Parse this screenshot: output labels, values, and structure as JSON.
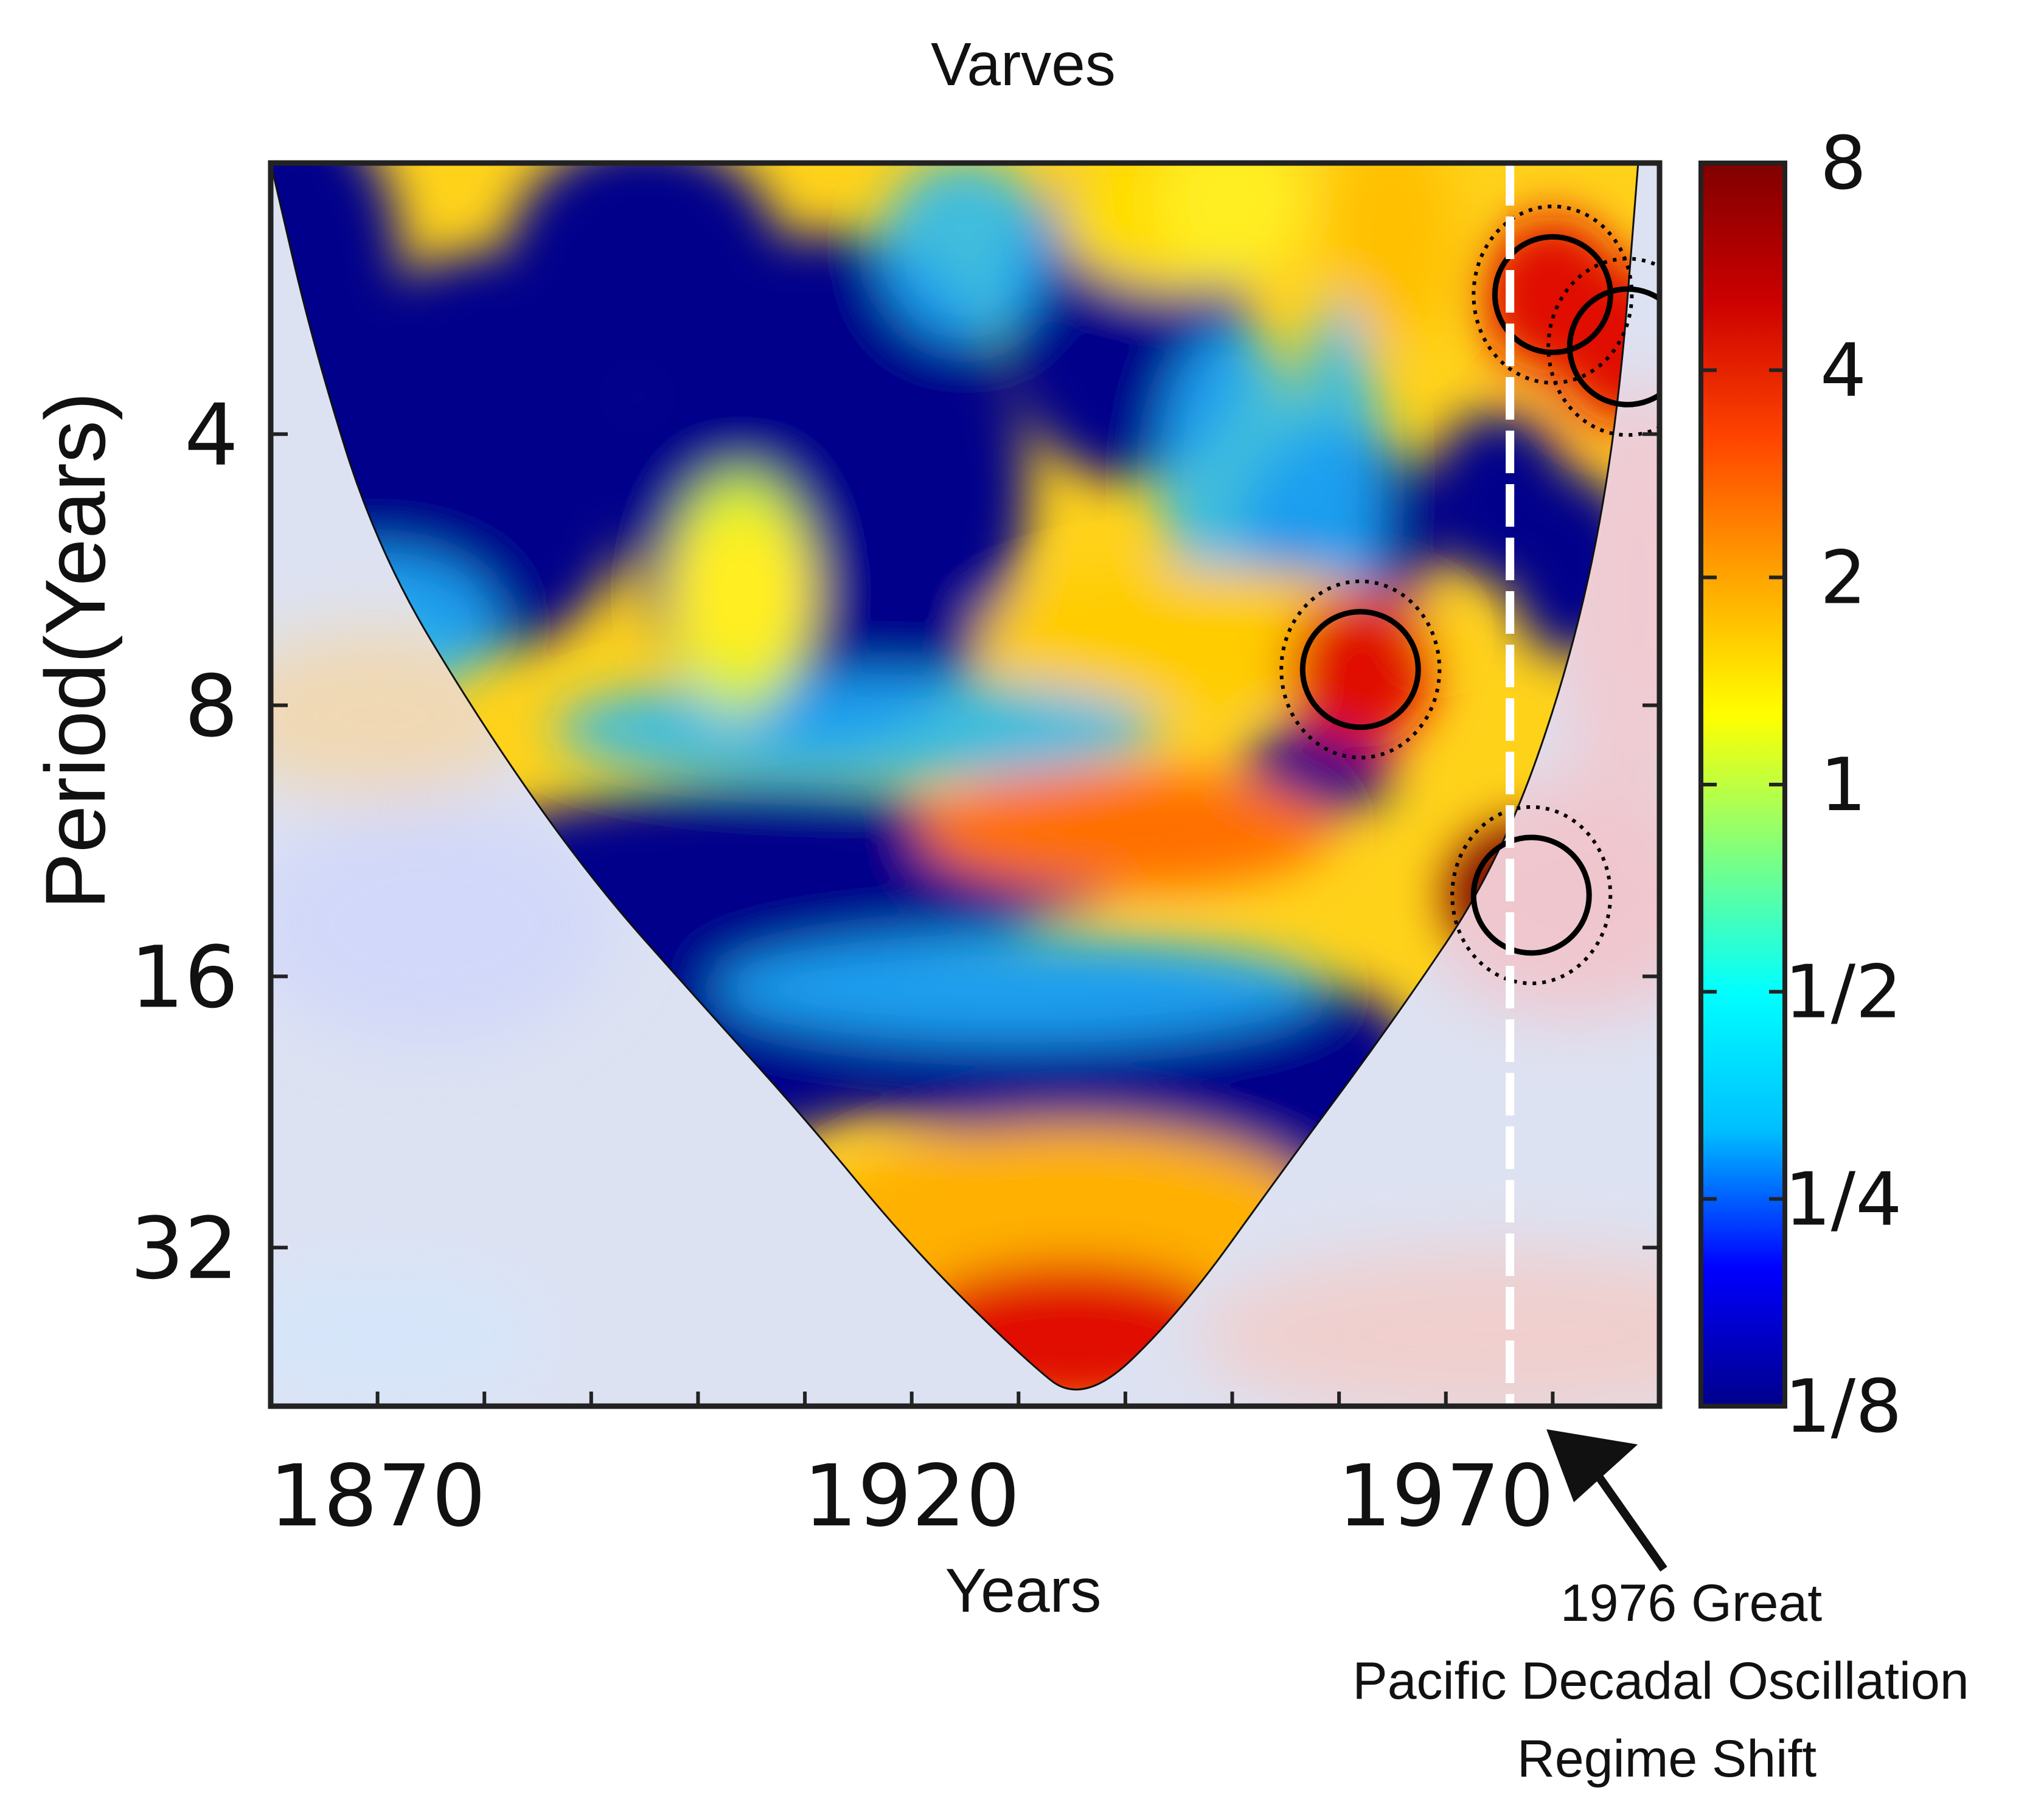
{
  "chart_data": {
    "type": "heatmap",
    "title": "Varves",
    "xlabel": "Years",
    "ylabel": "Period(Years)",
    "x_ticks": [
      "1870",
      "1920",
      "1970"
    ],
    "xlim": [
      1860,
      1990
    ],
    "y_scale": "log2",
    "ylim": [
      2,
      48
    ],
    "y_ticks": [
      "4",
      "8",
      "16",
      "32"
    ],
    "colorbar": {
      "scale": "log2",
      "ticks": [
        "8",
        "4",
        "2",
        "1",
        "1/2",
        "1/4",
        "1/8"
      ],
      "colors": [
        "#00008b",
        "#0000ff",
        "#00bfff",
        "#00ffff",
        "#7fff7f",
        "#ffff00",
        "#ffa500",
        "#ff4500",
        "#cc0000",
        "#800000"
      ]
    },
    "cone_of_influence": {
      "years": [
        1860,
        1864,
        1870,
        1880,
        1890,
        1900,
        1910,
        1920,
        1930,
        1936,
        1945,
        1955,
        1965,
        1975,
        1982,
        1986,
        1988
      ],
      "period": [
        2,
        3.2,
        5.4,
        8.5,
        12.5,
        17,
        23,
        32,
        42,
        48,
        38,
        26,
        18,
        12,
        7,
        4,
        2
      ]
    },
    "high_power_regions": [
      {
        "level": "dark-red",
        "center_year": 1978,
        "center_period": 13,
        "significant": true
      },
      {
        "level": "red",
        "center_year": 1962,
        "center_period": 7.3,
        "significant": true
      },
      {
        "level": "red",
        "center_year": 1980,
        "center_period": 2.8,
        "significant": true
      },
      {
        "level": "red",
        "center_year": 1987,
        "center_period": 3.2,
        "significant": true
      },
      {
        "level": "orange",
        "center_year": 1940,
        "center_period": 11,
        "significant": false
      },
      {
        "level": "red",
        "center_year": 1935,
        "center_period": 40,
        "significant": false
      },
      {
        "level": "yellow",
        "center_year": 1904,
        "center_period": 6,
        "significant": false
      },
      {
        "level": "yellow",
        "center_year": 1950,
        "center_period": 2.2,
        "significant": false
      }
    ],
    "low_power_regions": [
      {
        "center_year": 1912,
        "center_period": 4.5
      },
      {
        "center_year": 1895,
        "center_period": 18
      },
      {
        "center_year": 1925,
        "center_period": 13
      },
      {
        "center_year": 1945,
        "center_period": 22
      },
      {
        "center_year": 1875,
        "center_period": 2.5
      }
    ],
    "reference_line": {
      "year": 1976,
      "style": "white-dashed"
    },
    "annotation": {
      "lines": [
        "1976 Great",
        "Pacific Decadal Oscillation",
        "Regime Shift"
      ],
      "arrow_target_year": 1976
    }
  }
}
